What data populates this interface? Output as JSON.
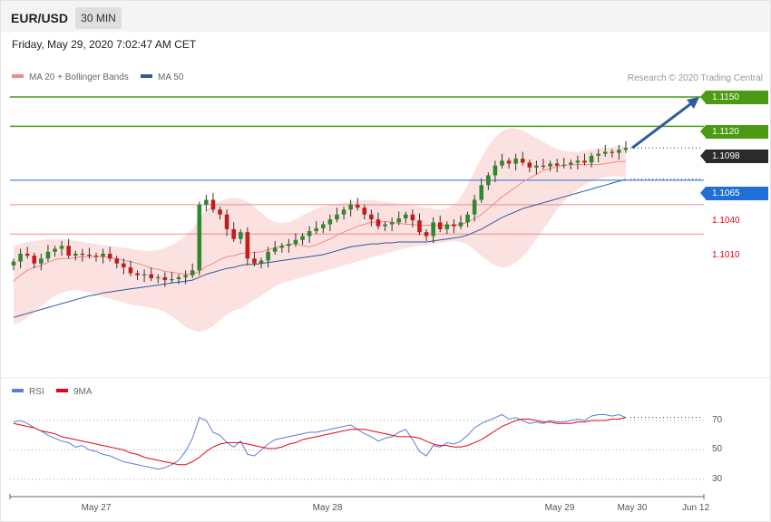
{
  "header": {
    "symbol": "EUR/USD",
    "timeframe": "30 MIN"
  },
  "datetime": "Friday, May 29, 2020 7:02:47 AM CET",
  "legend": {
    "main": [
      {
        "label": "MA 20 + Bollinger Bands",
        "color": "#f08a8a"
      },
      {
        "label": "MA 50",
        "color": "#2e5b9e"
      }
    ],
    "rsi": [
      {
        "label": "RSI",
        "color": "#5b7fd6"
      },
      {
        "label": "9MA",
        "color": "#e30613"
      }
    ]
  },
  "credit": "Research © 2020 Trading Central",
  "colors": {
    "green": "#4c9a13",
    "blue": "#1f6fd4",
    "red": "#e30613",
    "dark": "#2b2b2b",
    "band": "#fcdcdc",
    "candle_up": "#2c8a2c",
    "candle_down": "#c81a1a"
  },
  "chart_data": [
    {
      "type": "candlestick",
      "title": "EUR/USD",
      "timeframe": "30 MIN",
      "ylim": [
        1.0905,
        1.1165
      ],
      "price_levels": [
        {
          "value": 1.115,
          "label": "1.1150",
          "role": "resistance",
          "color": "#4c9a13"
        },
        {
          "value": 1.112,
          "label": "1.1120",
          "role": "resistance",
          "color": "#4c9a13"
        },
        {
          "value": 1.1098,
          "label": "1.1098",
          "role": "last price",
          "color": "#2b2b2b"
        },
        {
          "value": 1.1065,
          "label": "1.1065",
          "role": "pivot",
          "color": "#1f6fd4"
        },
        {
          "value": 1.104,
          "label": "1.1040",
          "role": "support",
          "color": "#e30613"
        },
        {
          "value": 1.101,
          "label": "1.1010",
          "role": "support",
          "color": "#e30613"
        }
      ],
      "x_ticks": [
        "May 27",
        "May 28",
        "May 29",
        "May 30",
        "Jun 12"
      ],
      "closes": [
        1.0982,
        1.099,
        1.0988,
        1.098,
        1.0985,
        1.0992,
        1.0995,
        1.0998,
        1.0988,
        1.099,
        1.0989,
        1.0988,
        1.0987,
        1.099,
        1.0985,
        1.098,
        1.0976,
        1.097,
        1.0968,
        1.0969,
        1.0965,
        1.0966,
        1.0963,
        1.0964,
        1.0966,
        1.0968,
        1.0973,
        1.104,
        1.1045,
        1.1035,
        1.103,
        1.1015,
        1.1005,
        1.1012,
        1.0985,
        1.098,
        1.0983,
        1.0992,
        1.0996,
        1.0998,
        1.1,
        1.1004,
        1.1008,
        1.1013,
        1.1016,
        1.102,
        1.1025,
        1.103,
        1.1035,
        1.104,
        1.1037,
        1.103,
        1.1025,
        1.1018,
        1.102,
        1.1022,
        1.1026,
        1.103,
        1.1024,
        1.1012,
        1.1008,
        1.1022,
        1.1015,
        1.102,
        1.1018,
        1.1022,
        1.103,
        1.1045,
        1.106,
        1.107,
        1.108,
        1.1085,
        1.1082,
        1.1087,
        1.1083,
        1.1078,
        1.108,
        1.1079,
        1.1082,
        1.108,
        1.1081,
        1.1083,
        1.1085,
        1.1083,
        1.109,
        1.1092,
        1.1094,
        1.1093,
        1.1096,
        1.1098
      ],
      "ma20": [
        1.0962,
        1.0968,
        1.0973,
        1.0976,
        1.0978,
        1.0981,
        1.0984,
        1.0985,
        1.0985,
        1.0986,
        1.0987,
        1.0987,
        1.0987,
        1.0987,
        1.0986,
        1.0985,
        1.0983,
        1.0982,
        1.098,
        1.0978,
        1.0975,
        1.0974,
        1.0972,
        1.0971,
        1.097,
        1.0969,
        1.0969,
        1.0972,
        1.0977,
        1.098,
        1.0984,
        1.0987,
        1.0988,
        1.099,
        1.0991,
        1.0991,
        1.0992,
        1.0994,
        1.0996,
        1.0998,
        1.0999,
        1.1,
        1.0998,
        1.0997,
        1.0999,
        1.1002,
        1.1005,
        1.1009,
        1.1012,
        1.1015,
        1.1018,
        1.102,
        1.1022,
        1.1022,
        1.1023,
        1.1022,
        1.1021,
        1.102,
        1.102,
        1.1019,
        1.1019,
        1.1019,
        1.1019,
        1.1019,
        1.1019,
        1.102,
        1.1022,
        1.1026,
        1.103,
        1.1036,
        1.1042,
        1.1048,
        1.1053,
        1.1058,
        1.1063,
        1.1067,
        1.1071,
        1.1075,
        1.1077,
        1.1079,
        1.108,
        1.1081,
        1.1081,
        1.1081,
        1.1081,
        1.1081,
        1.1082,
        1.1083,
        1.1084,
        1.1084
      ],
      "ma50": [
        1.0925,
        1.0927,
        1.0929,
        1.0931,
        1.0933,
        1.0935,
        1.0937,
        1.0939,
        1.0941,
        1.0943,
        1.0945,
        1.0947,
        1.0948,
        1.095,
        1.0951,
        1.0952,
        1.0953,
        1.0954,
        1.0955,
        1.0956,
        1.0957,
        1.0958,
        1.0959,
        1.096,
        1.0961,
        1.0962,
        1.0963,
        1.0966,
        1.0969,
        1.0971,
        1.0973,
        1.0975,
        1.0976,
        1.0978,
        1.0979,
        1.0979,
        1.098,
        1.0981,
        1.0982,
        1.0983,
        1.0984,
        1.0985,
        1.0986,
        1.0987,
        1.0988,
        1.0989,
        1.0991,
        1.0993,
        1.0995,
        1.0997,
        1.0998,
        1.0999,
        1.1,
        1.1,
        1.1001,
        1.1001,
        1.1002,
        1.1002,
        1.1002,
        1.1002,
        1.1002,
        1.1003,
        1.1004,
        1.1005,
        1.1006,
        1.1007,
        1.1009,
        1.1012,
        1.1015,
        1.1019,
        1.1023,
        1.1027,
        1.103,
        1.1033,
        1.1036,
        1.1038,
        1.104,
        1.1042,
        1.1044,
        1.1046,
        1.1048,
        1.105,
        1.1052,
        1.1054,
        1.1056,
        1.1058,
        1.106,
        1.1062,
        1.1064,
        1.1066
      ],
      "bb_upper": [
        1.0998,
        1.1,
        1.1002,
        1.1003,
        1.1004,
        1.1005,
        1.1005,
        1.1005,
        1.1004,
        1.1003,
        1.1002,
        1.1001,
        1.1,
        1.0999,
        1.0998,
        1.0997,
        1.0996,
        1.0995,
        1.0994,
        1.0993,
        1.0993,
        1.0994,
        1.0996,
        1.0999,
        1.1003,
        1.1008,
        1.1015,
        1.1026,
        1.1035,
        1.104,
        1.1044,
        1.1046,
        1.1047,
        1.1046,
        1.1043,
        1.1038,
        1.1032,
        1.1026,
        1.1022,
        1.1021,
        1.1022,
        1.1025,
        1.1029,
        1.1033,
        1.1036,
        1.1038,
        1.104,
        1.1041,
        1.1042,
        1.1043,
        1.1044,
        1.1045,
        1.1045,
        1.1044,
        1.1043,
        1.1042,
        1.1041,
        1.104,
        1.1039,
        1.1038,
        1.1037,
        1.1036,
        1.1035,
        1.1036,
        1.104,
        1.1048,
        1.106,
        1.1074,
        1.1088,
        1.11,
        1.1109,
        1.1115,
        1.1118,
        1.1118,
        1.1116,
        1.1112,
        1.1108,
        1.1104,
        1.11,
        1.1097,
        1.1095,
        1.1094,
        1.1094,
        1.1095,
        1.1096,
        1.1097,
        1.1098,
        1.1099,
        1.11,
        1.11
      ],
      "bb_lower": [
        1.0918,
        1.092,
        1.0925,
        1.093,
        1.0936,
        1.0942,
        1.0947,
        1.095,
        1.0952,
        1.0953,
        1.0952,
        1.095,
        1.0948,
        1.0946,
        1.0944,
        1.0942,
        1.094,
        1.0938,
        1.0937,
        1.0936,
        1.0935,
        1.0933,
        1.093,
        1.0926,
        1.0921,
        1.0915,
        1.0912,
        1.091,
        1.0912,
        1.0916,
        1.0922,
        1.0928,
        1.0932,
        1.0934,
        1.0938,
        1.0943,
        1.0947,
        1.0952,
        1.0957,
        1.096,
        1.0962,
        1.0964,
        1.0966,
        1.0968,
        1.097,
        1.0972,
        1.0974,
        1.0976,
        1.0978,
        1.098,
        1.0982,
        1.0984,
        1.0986,
        1.0988,
        1.099,
        1.0992,
        1.0994,
        1.0996,
        1.0997,
        1.0998,
        1.0999,
        1.1,
        1.1001,
        1.1002,
        1.1003,
        1.1002,
        1.0999,
        1.0994,
        1.0988,
        1.0982,
        1.0978,
        1.0976,
        1.0977,
        1.0981,
        1.0987,
        1.0995,
        1.1005,
        1.1015,
        1.1025,
        1.1035,
        1.1043,
        1.105,
        1.1056,
        1.106,
        1.1064,
        1.1066,
        1.1068,
        1.1069,
        1.1069,
        1.1068
      ],
      "projection": {
        "from": 1.1098,
        "to": 1.115,
        "direction": "up"
      }
    },
    {
      "type": "line",
      "title": "RSI",
      "ylim": [
        20,
        80
      ],
      "y_ticks": [
        "70",
        "50",
        "30"
      ],
      "series": [
        {
          "name": "RSI",
          "color": "#5b7fd6",
          "values": [
            69,
            70,
            68,
            65,
            63,
            60,
            58,
            56,
            55,
            52,
            53,
            50,
            49,
            47,
            46,
            44,
            42,
            41,
            40,
            39,
            38,
            37,
            38,
            40,
            43,
            49,
            58,
            72,
            70,
            62,
            60,
            55,
            52,
            56,
            47,
            46,
            50,
            54,
            57,
            58,
            59,
            60,
            61,
            62,
            62,
            63,
            64,
            65,
            66,
            67,
            64,
            61,
            59,
            56,
            58,
            59,
            62,
            64,
            57,
            49,
            46,
            53,
            52,
            55,
            54,
            56,
            60,
            65,
            68,
            70,
            72,
            74,
            71,
            72,
            70,
            68,
            69,
            68,
            70,
            69,
            69,
            70,
            71,
            70,
            73,
            74,
            74,
            73,
            74,
            72
          ]
        },
        {
          "name": "9MA",
          "color": "#e30613",
          "values": [
            68,
            67,
            66,
            65,
            63,
            62,
            61,
            59,
            58,
            57,
            56,
            55,
            54,
            53,
            52,
            51,
            50,
            48,
            47,
            45,
            44,
            43,
            42,
            41,
            40,
            40,
            42,
            45,
            49,
            52,
            54,
            55,
            55,
            55,
            54,
            53,
            52,
            51,
            51,
            52,
            54,
            55,
            57,
            58,
            59,
            60,
            61,
            62,
            63,
            64,
            64,
            64,
            63,
            62,
            61,
            60,
            59,
            59,
            59,
            58,
            56,
            54,
            53,
            53,
            52,
            52,
            53,
            55,
            57,
            60,
            63,
            66,
            68,
            70,
            71,
            71,
            70,
            69,
            69,
            68,
            68,
            68,
            69,
            69,
            70,
            70,
            70,
            71,
            71,
            72
          ]
        }
      ]
    }
  ]
}
